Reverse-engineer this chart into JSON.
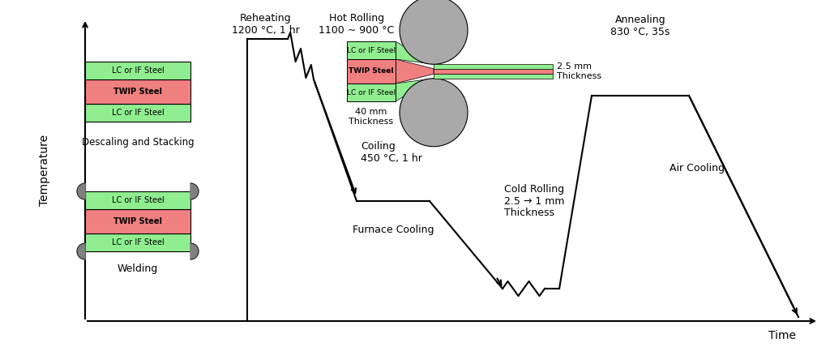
{
  "bg_color": "#ffffff",
  "lc_color": "#90EE90",
  "twip_color": "#F08080",
  "roller_color": "#A9A9A9",
  "line_color": "#000000",
  "text_color": "#000000",
  "annotations": {
    "reheating": "Reheating\n1200 °C, 1 hr",
    "hot_rolling": "Hot Rolling\n1100 ~ 900 °C",
    "coiling": "Coiling\n450 °C, 1 hr",
    "furnace_cooling": "Furnace Cooling",
    "cold_rolling": "Cold Rolling\n2.5 → 1 mm\nThickness",
    "annealing": "Annealing\n830 °C, 35s",
    "air_cooling": "Air Cooling",
    "descaling": "Descaling and Stacking",
    "welding": "Welding",
    "thickness_40": "40 mm\nThickness",
    "thickness_25": "2.5 mm\nThickness",
    "xlabel": "Time",
    "ylabel": "Temperature"
  },
  "label_font": 9,
  "small_font": 8,
  "axis_font": 10
}
